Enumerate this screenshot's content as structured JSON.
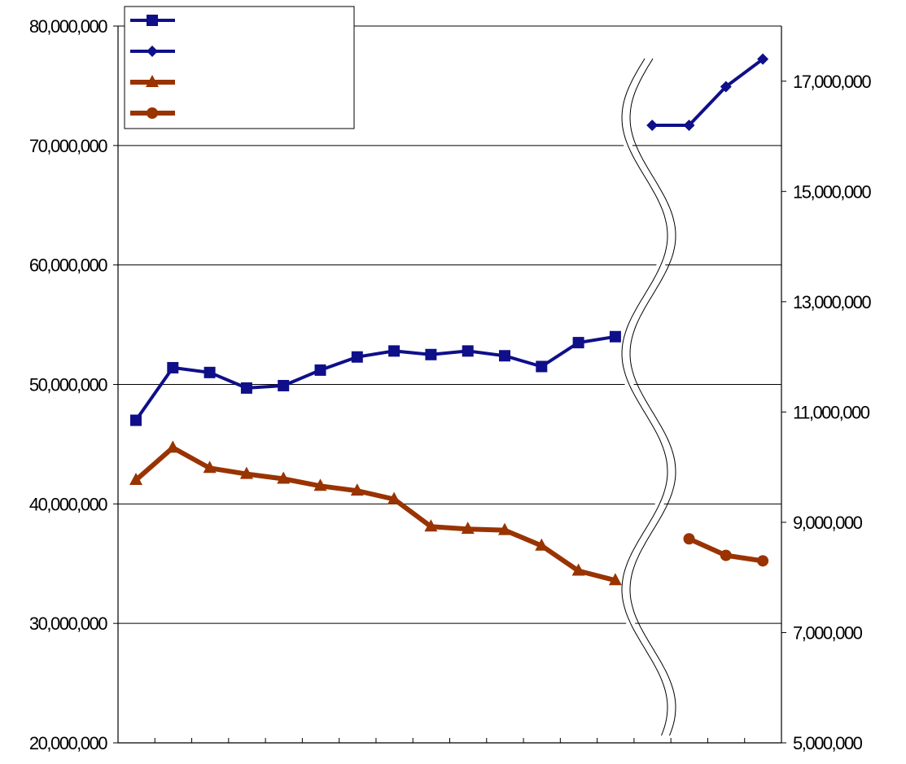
{
  "chart_data": {
    "type": "line",
    "x": [
      1,
      2,
      3,
      4,
      5,
      6,
      7,
      8,
      9,
      10,
      11,
      12,
      13,
      14,
      15,
      16,
      17,
      18
    ],
    "series": [
      {
        "axis": "left",
        "marker": "square",
        "color": "#0f0f8a",
        "values": [
          47000000,
          51400000,
          51000000,
          49700000,
          49900000,
          51200000,
          52300000,
          52800000,
          52500000,
          52800000,
          52400000,
          51500000,
          53500000,
          54000000,
          null,
          null,
          null,
          null
        ]
      },
      {
        "axis": "right",
        "marker": "diamond",
        "color": "#0f0f8a",
        "values": [
          null,
          null,
          null,
          null,
          null,
          null,
          null,
          null,
          null,
          null,
          null,
          null,
          null,
          null,
          16200000,
          16200000,
          16900000,
          17400000
        ]
      },
      {
        "axis": "left",
        "marker": "triangle",
        "color": "#993300",
        "values": [
          42000000,
          44700000,
          43000000,
          42500000,
          42100000,
          41500000,
          41100000,
          40400000,
          38100000,
          37900000,
          37800000,
          36500000,
          34400000,
          33600000,
          null,
          null,
          null,
          null
        ]
      },
      {
        "axis": "right",
        "marker": "circle",
        "color": "#993300",
        "values": [
          null,
          null,
          null,
          null,
          null,
          null,
          null,
          null,
          null,
          null,
          null,
          null,
          null,
          null,
          null,
          8700000,
          8400000,
          8300000
        ]
      }
    ],
    "left_axis": {
      "min": 20000000,
      "max": 80000000,
      "ticks": [
        20000000,
        30000000,
        40000000,
        50000000,
        60000000,
        70000000,
        80000000
      ],
      "tick_labels": [
        "20,000,000",
        "30,000,000",
        "40,000,000",
        "50,000,000",
        "60,000,000",
        "70,000,000",
        "80,000,000"
      ]
    },
    "right_axis": {
      "min": 5000000,
      "max": 18000000,
      "ticks": [
        5000000,
        7000000,
        9000000,
        11000000,
        13000000,
        15000000,
        17000000
      ],
      "tick_labels": [
        "5,000,000",
        "7,000,000",
        "9,000,000",
        "11,000,000",
        "13,000,000",
        "15,000,000",
        "17,000,000"
      ]
    },
    "x_tick_count": 18,
    "grid": "horizontal",
    "axis_break": "between x 14 and 15",
    "legend": "top-left",
    "legend_entries": [
      "",
      "",
      "",
      ""
    ],
    "title": "",
    "xlabel": "",
    "ylabel": ""
  }
}
